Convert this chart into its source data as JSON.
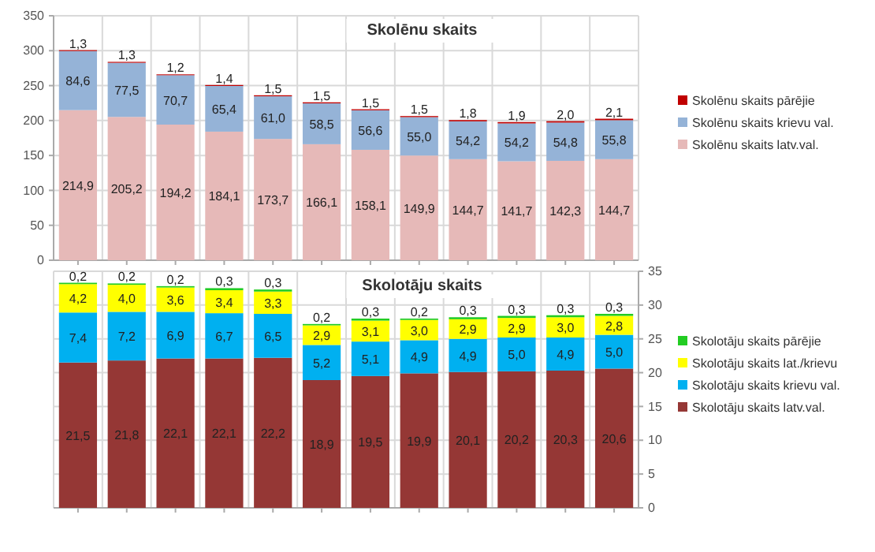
{
  "chart_data": [
    {
      "type": "bar",
      "title": "Skolēnu skaits",
      "stacked": true,
      "grid": true,
      "legend": "right",
      "categories": [
        null,
        null,
        null,
        null,
        null,
        null,
        null,
        null,
        null,
        null,
        null,
        null
      ],
      "ylim": [
        0,
        350
      ],
      "yticks": [
        0,
        50,
        100,
        150,
        200,
        250,
        300,
        350
      ],
      "series": [
        {
          "name": "Skolēnu skaits latv.val.",
          "color": "#e6b9b8",
          "values": [
            214.9,
            205.2,
            194.2,
            184.1,
            173.7,
            166.1,
            158.1,
            149.9,
            144.7,
            141.7,
            142.3,
            144.7
          ],
          "value_labels": [
            "214,9",
            "205,2",
            "194,2",
            "184,1",
            "173,7",
            "166,1",
            "158,1",
            "149,9",
            "144,7",
            "141,7",
            "142,3",
            "144,7"
          ]
        },
        {
          "name": "Skolēnu skaits krievu val.",
          "color": "#95b3d7",
          "values": [
            84.6,
            77.5,
            70.7,
            65.4,
            61.0,
            58.5,
            56.6,
            55.0,
            54.2,
            54.2,
            54.8,
            55.8
          ],
          "value_labels": [
            "84,6",
            "77,5",
            "70,7",
            "65,4",
            "61,0",
            "58,5",
            "56,6",
            "55,0",
            "54,2",
            "54,2",
            "54,8",
            "55,8"
          ]
        },
        {
          "name": "Skolēnu skaits pārējie",
          "color": "#c00000",
          "values": [
            1.3,
            1.3,
            1.2,
            1.4,
            1.5,
            1.5,
            1.5,
            1.5,
            1.8,
            1.9,
            2.0,
            2.1
          ],
          "value_labels": [
            "1,3",
            "1,3",
            "1,2",
            "1,4",
            "1,5",
            "1,5",
            "1,5",
            "1,5",
            "1,8",
            "1,9",
            "2,0",
            "2,1"
          ]
        }
      ]
    },
    {
      "type": "bar",
      "title": "Skolotāju skaits",
      "stacked": true,
      "grid": true,
      "legend": "right",
      "categories": [
        null,
        null,
        null,
        null,
        null,
        null,
        null,
        null,
        null,
        null,
        null,
        null
      ],
      "ylim": [
        0,
        35
      ],
      "yticks": [
        0,
        5,
        10,
        15,
        20,
        25,
        30,
        35
      ],
      "series": [
        {
          "name": "Skolotāju skaits latv.val.",
          "color": "#953735",
          "values": [
            21.5,
            21.8,
            22.1,
            22.1,
            22.2,
            18.9,
            19.5,
            19.9,
            20.1,
            20.2,
            20.3,
            20.6
          ],
          "value_labels": [
            "21,5",
            "21,8",
            "22,1",
            "22,1",
            "22,2",
            "18,9",
            "19,5",
            "19,9",
            "20,1",
            "20,2",
            "20,3",
            "20,6"
          ]
        },
        {
          "name": "Skolotāju skaits krievu val.",
          "color": "#00b0f0",
          "values": [
            7.4,
            7.2,
            6.9,
            6.7,
            6.5,
            5.2,
            5.1,
            4.9,
            4.9,
            5.0,
            4.9,
            5.0
          ],
          "value_labels": [
            "7,4",
            "7,2",
            "6,9",
            "6,7",
            "6,5",
            "5,2",
            "5,1",
            "4,9",
            "4,9",
            "5,0",
            "4,9",
            "5,0"
          ]
        },
        {
          "name": "Skolotāju skaits lat./krievu",
          "color": "#ffff00",
          "values": [
            4.2,
            4.0,
            3.6,
            3.4,
            3.3,
            2.9,
            3.1,
            3.0,
            2.9,
            2.9,
            3.0,
            2.8
          ],
          "value_labels": [
            "4,2",
            "4,0",
            "3,6",
            "3,4",
            "3,3",
            "2,9",
            "3,1",
            "3,0",
            "2,9",
            "2,9",
            "3,0",
            "2,8"
          ]
        },
        {
          "name": "Skolotāju skaits pārējie",
          "color": "#22cc22",
          "values": [
            0.2,
            0.2,
            0.2,
            0.3,
            0.3,
            0.2,
            0.3,
            0.2,
            0.3,
            0.3,
            0.3,
            0.3
          ],
          "value_labels": [
            "0,2",
            "0,2",
            "0,2",
            "0,3",
            "0,3",
            "0,2",
            "0,3",
            "0,2",
            "0,3",
            "0,3",
            "0,3",
            "0,3"
          ]
        }
      ]
    }
  ]
}
